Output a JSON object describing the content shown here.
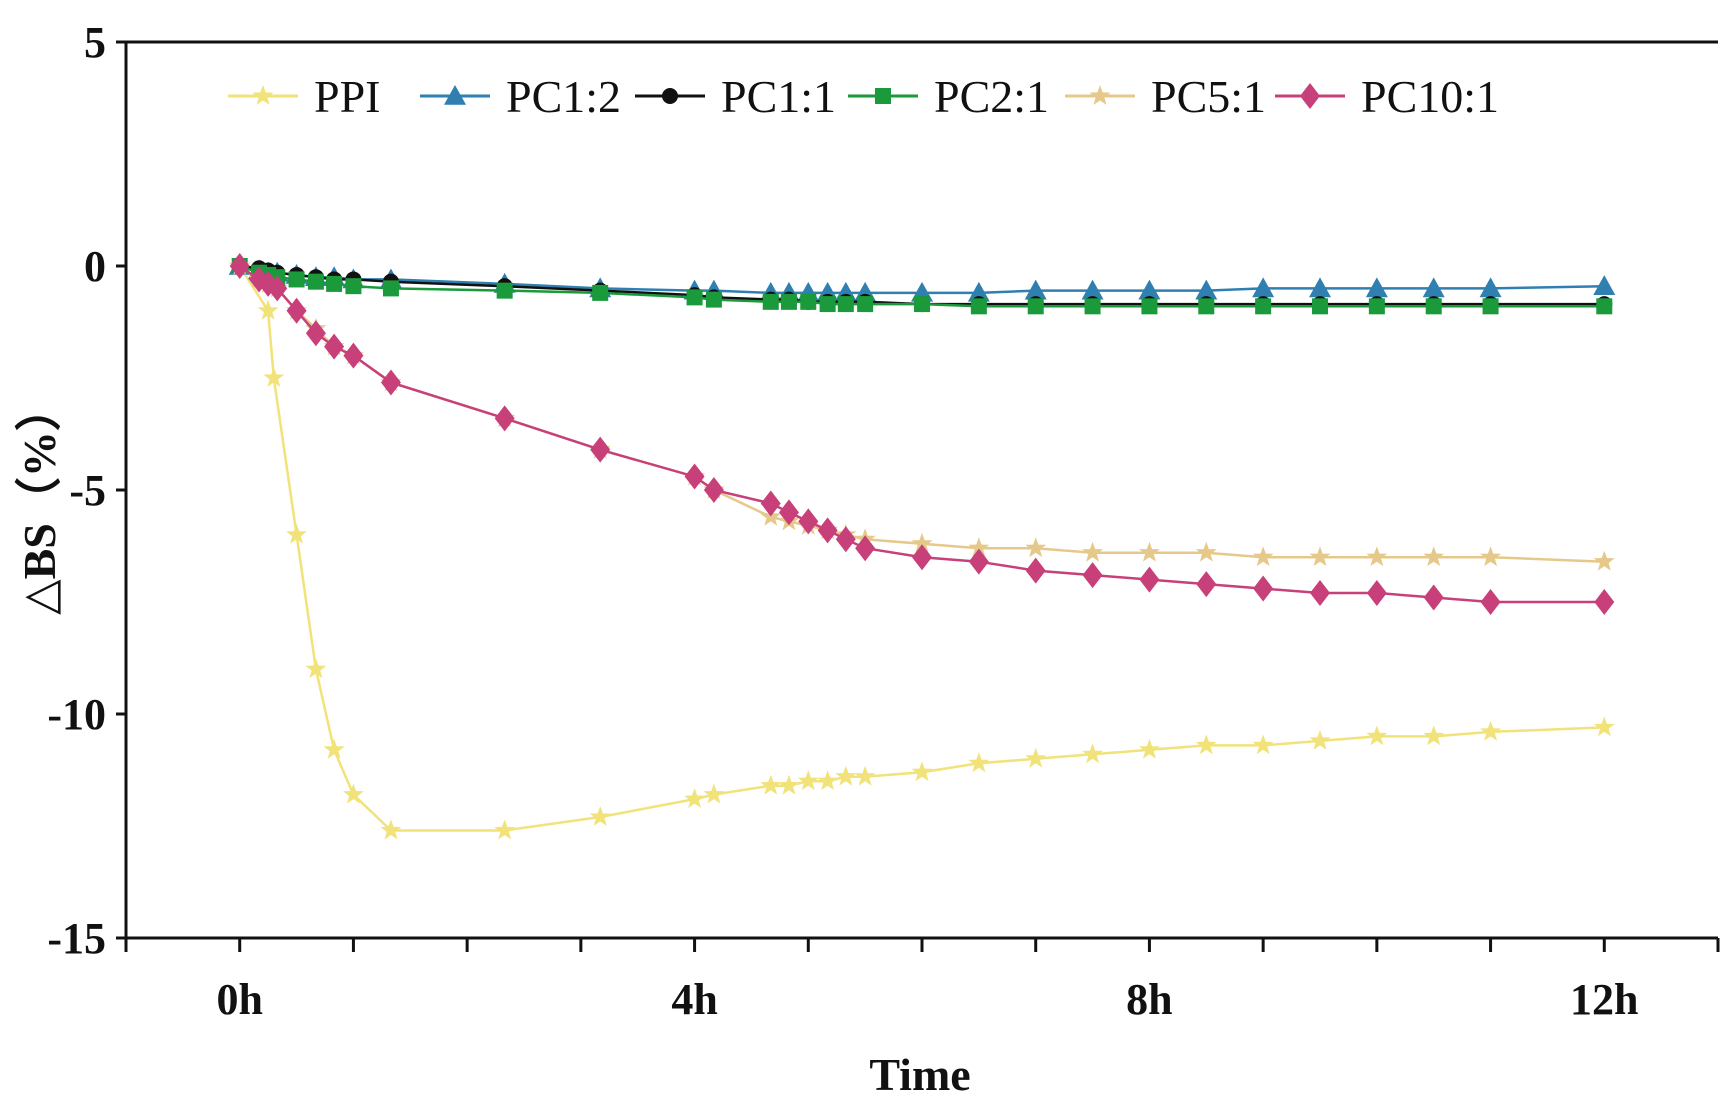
{
  "chart_data": {
    "type": "line",
    "title": "",
    "xlabel": "Time",
    "ylabel": "△BS（%）",
    "xlim": [
      -1,
      13
    ],
    "ylim": [
      -15,
      5
    ],
    "x_ticks": [
      0,
      4,
      8,
      12
    ],
    "x_tick_labels": [
      "0h",
      "4h",
      "8h",
      "12h"
    ],
    "y_ticks": [
      5,
      0,
      -5,
      -10,
      -15
    ],
    "y_tick_labels": [
      "5",
      "0",
      "-5",
      "-10",
      "-15"
    ],
    "grid": false,
    "legend_position": "top",
    "series": [
      {
        "name": "PPI",
        "color": "#f2e27a",
        "marker": "star",
        "points": [
          [
            0,
            0
          ],
          [
            0.25,
            -1.0
          ],
          [
            0.3,
            -2.5
          ],
          [
            0.5,
            -6.0
          ],
          [
            0.67,
            -9.0
          ],
          [
            0.83,
            -10.8
          ],
          [
            1.0,
            -11.8
          ],
          [
            1.33,
            -12.6
          ],
          [
            2.33,
            -12.6
          ],
          [
            3.17,
            -12.3
          ],
          [
            4.0,
            -11.9
          ],
          [
            4.17,
            -11.8
          ],
          [
            4.67,
            -11.6
          ],
          [
            4.83,
            -11.6
          ],
          [
            5.0,
            -11.5
          ],
          [
            5.17,
            -11.5
          ],
          [
            5.33,
            -11.4
          ],
          [
            5.5,
            -11.4
          ],
          [
            6.0,
            -11.3
          ],
          [
            6.5,
            -11.1
          ],
          [
            7.0,
            -11.0
          ],
          [
            7.5,
            -10.9
          ],
          [
            8.0,
            -10.8
          ],
          [
            8.5,
            -10.7
          ],
          [
            9.0,
            -10.7
          ],
          [
            9.5,
            -10.6
          ],
          [
            10.0,
            -10.5
          ],
          [
            10.5,
            -10.5
          ],
          [
            11.0,
            -10.4
          ],
          [
            12.0,
            -10.3
          ]
        ]
      },
      {
        "name": "PC1:2",
        "color": "#2f7fb0",
        "marker": "triangle",
        "points": [
          [
            0,
            0
          ],
          [
            0.17,
            -0.1
          ],
          [
            0.25,
            -0.15
          ],
          [
            0.33,
            -0.15
          ],
          [
            0.5,
            -0.2
          ],
          [
            0.67,
            -0.25
          ],
          [
            0.83,
            -0.25
          ],
          [
            1.0,
            -0.3
          ],
          [
            1.33,
            -0.3
          ],
          [
            2.33,
            -0.4
          ],
          [
            3.17,
            -0.5
          ],
          [
            4.0,
            -0.55
          ],
          [
            4.17,
            -0.55
          ],
          [
            4.67,
            -0.6
          ],
          [
            4.83,
            -0.6
          ],
          [
            5.0,
            -0.6
          ],
          [
            5.17,
            -0.6
          ],
          [
            5.33,
            -0.6
          ],
          [
            5.5,
            -0.6
          ],
          [
            6.0,
            -0.6
          ],
          [
            6.5,
            -0.6
          ],
          [
            7.0,
            -0.55
          ],
          [
            7.5,
            -0.55
          ],
          [
            8.0,
            -0.55
          ],
          [
            8.5,
            -0.55
          ],
          [
            9.0,
            -0.5
          ],
          [
            9.5,
            -0.5
          ],
          [
            10.0,
            -0.5
          ],
          [
            10.5,
            -0.5
          ],
          [
            11.0,
            -0.5
          ],
          [
            12.0,
            -0.45
          ]
        ]
      },
      {
        "name": "PC1:1",
        "color": "#111111",
        "marker": "circle",
        "points": [
          [
            0,
            0
          ],
          [
            0.17,
            -0.05
          ],
          [
            0.25,
            -0.1
          ],
          [
            0.33,
            -0.15
          ],
          [
            0.5,
            -0.2
          ],
          [
            0.67,
            -0.25
          ],
          [
            0.83,
            -0.3
          ],
          [
            1.0,
            -0.3
          ],
          [
            1.33,
            -0.35
          ],
          [
            2.33,
            -0.45
          ],
          [
            3.17,
            -0.55
          ],
          [
            4.0,
            -0.65
          ],
          [
            4.17,
            -0.7
          ],
          [
            4.67,
            -0.75
          ],
          [
            4.83,
            -0.75
          ],
          [
            5.0,
            -0.8
          ],
          [
            5.17,
            -0.8
          ],
          [
            5.33,
            -0.8
          ],
          [
            5.5,
            -0.8
          ],
          [
            6.0,
            -0.85
          ],
          [
            6.5,
            -0.85
          ],
          [
            7.0,
            -0.85
          ],
          [
            7.5,
            -0.85
          ],
          [
            8.0,
            -0.85
          ],
          [
            8.5,
            -0.85
          ],
          [
            9.0,
            -0.85
          ],
          [
            9.5,
            -0.85
          ],
          [
            10.0,
            -0.85
          ],
          [
            10.5,
            -0.85
          ],
          [
            11.0,
            -0.85
          ],
          [
            12.0,
            -0.85
          ]
        ]
      },
      {
        "name": "PC2:1",
        "color": "#1a9a3a",
        "marker": "square",
        "points": [
          [
            0,
            0
          ],
          [
            0.17,
            -0.15
          ],
          [
            0.25,
            -0.2
          ],
          [
            0.33,
            -0.25
          ],
          [
            0.5,
            -0.3
          ],
          [
            0.67,
            -0.35
          ],
          [
            0.83,
            -0.4
          ],
          [
            1.0,
            -0.45
          ],
          [
            1.33,
            -0.5
          ],
          [
            2.33,
            -0.55
          ],
          [
            3.17,
            -0.6
          ],
          [
            4.0,
            -0.7
          ],
          [
            4.17,
            -0.75
          ],
          [
            4.67,
            -0.8
          ],
          [
            4.83,
            -0.8
          ],
          [
            5.0,
            -0.8
          ],
          [
            5.17,
            -0.85
          ],
          [
            5.33,
            -0.85
          ],
          [
            5.5,
            -0.85
          ],
          [
            6.0,
            -0.85
          ],
          [
            6.5,
            -0.9
          ],
          [
            7.0,
            -0.9
          ],
          [
            7.5,
            -0.9
          ],
          [
            8.0,
            -0.9
          ],
          [
            8.5,
            -0.9
          ],
          [
            9.0,
            -0.9
          ],
          [
            9.5,
            -0.9
          ],
          [
            10.0,
            -0.9
          ],
          [
            10.5,
            -0.9
          ],
          [
            11.0,
            -0.9
          ],
          [
            12.0,
            -0.9
          ]
        ]
      },
      {
        "name": "PC5:1",
        "color": "#e6c98a",
        "marker": "star",
        "points": [
          [
            0,
            0
          ],
          [
            0.17,
            -0.3
          ],
          [
            0.25,
            -0.4
          ],
          [
            0.33,
            -0.5
          ],
          [
            0.5,
            -1.0
          ],
          [
            0.67,
            -1.4
          ],
          [
            0.83,
            -1.8
          ],
          [
            1.0,
            -2.0
          ],
          [
            1.33,
            -2.6
          ],
          [
            2.33,
            -3.4
          ],
          [
            3.17,
            -4.1
          ],
          [
            4.0,
            -4.7
          ],
          [
            4.17,
            -5.0
          ],
          [
            4.67,
            -5.6
          ],
          [
            4.83,
            -5.7
          ],
          [
            5.0,
            -5.8
          ],
          [
            5.17,
            -5.9
          ],
          [
            5.33,
            -6.0
          ],
          [
            5.5,
            -6.1
          ],
          [
            6.0,
            -6.2
          ],
          [
            6.5,
            -6.3
          ],
          [
            7.0,
            -6.3
          ],
          [
            7.5,
            -6.4
          ],
          [
            8.0,
            -6.4
          ],
          [
            8.5,
            -6.4
          ],
          [
            9.0,
            -6.5
          ],
          [
            9.5,
            -6.5
          ],
          [
            10.0,
            -6.5
          ],
          [
            10.5,
            -6.5
          ],
          [
            11.0,
            -6.5
          ],
          [
            12.0,
            -6.6
          ]
        ]
      },
      {
        "name": "PC10:1",
        "color": "#c8407a",
        "marker": "diamond",
        "points": [
          [
            0,
            0
          ],
          [
            0.17,
            -0.3
          ],
          [
            0.25,
            -0.4
          ],
          [
            0.33,
            -0.5
          ],
          [
            0.5,
            -1.0
          ],
          [
            0.67,
            -1.5
          ],
          [
            0.83,
            -1.8
          ],
          [
            1.0,
            -2.0
          ],
          [
            1.33,
            -2.6
          ],
          [
            2.33,
            -3.4
          ],
          [
            3.17,
            -4.1
          ],
          [
            4.0,
            -4.7
          ],
          [
            4.17,
            -5.0
          ],
          [
            4.67,
            -5.3
          ],
          [
            4.83,
            -5.5
          ],
          [
            5.0,
            -5.7
          ],
          [
            5.17,
            -5.9
          ],
          [
            5.33,
            -6.1
          ],
          [
            5.5,
            -6.3
          ],
          [
            6.0,
            -6.5
          ],
          [
            6.5,
            -6.6
          ],
          [
            7.0,
            -6.8
          ],
          [
            7.5,
            -6.9
          ],
          [
            8.0,
            -7.0
          ],
          [
            8.5,
            -7.1
          ],
          [
            9.0,
            -7.2
          ],
          [
            9.5,
            -7.3
          ],
          [
            10.0,
            -7.3
          ],
          [
            10.5,
            -7.4
          ],
          [
            11.0,
            -7.5
          ],
          [
            12.0,
            -7.5
          ]
        ]
      }
    ]
  }
}
